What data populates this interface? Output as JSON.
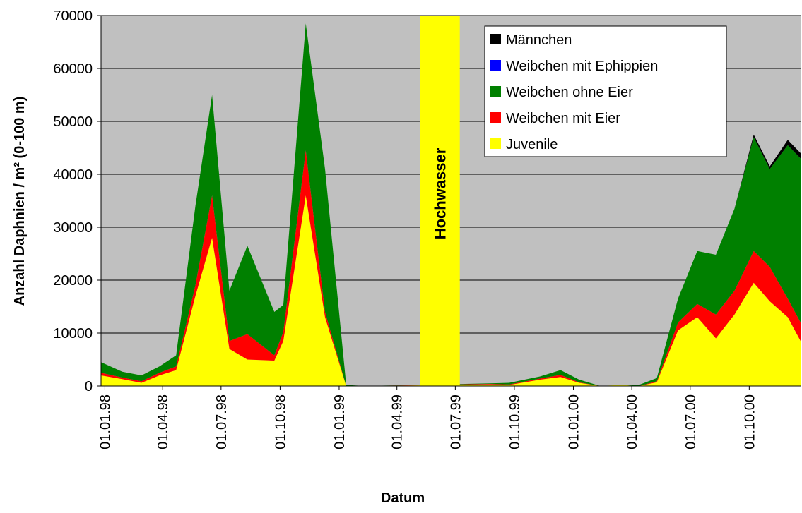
{
  "chart_data": {
    "type": "stacked_area",
    "x_label": "Datum",
    "y_label": "Anzahl Daphnien / m² (0-100 m)",
    "x": [
      "1997-12-26",
      "1998-01-28",
      "1998-02-27",
      "1998-03-27",
      "1998-04-22",
      "1998-05-22",
      "1998-06-17",
      "1998-07-14",
      "1998-08-11",
      "1998-09-22",
      "1998-10-06",
      "1998-11-10",
      "1998-12-10",
      "1999-01-12",
      "1999-02-10",
      "1999-08-24",
      "1999-09-23",
      "1999-11-10",
      "1999-12-12",
      "2000-01-10",
      "2000-02-12",
      "2000-03-15",
      "2000-04-12",
      "2000-05-10",
      "2000-06-12",
      "2000-07-12",
      "2000-08-10",
      "2000-09-08",
      "2000-10-08",
      "2000-11-02",
      "2000-11-30",
      "2000-12-20"
    ],
    "series": [
      {
        "name": "Juvenile",
        "color": "#ffff00",
        "values": [
          2000,
          1300,
          600,
          2000,
          3000,
          17000,
          28000,
          7000,
          5000,
          4800,
          8500,
          36000,
          13000,
          0,
          0,
          300,
          200,
          1200,
          1700,
          600,
          0,
          200,
          0,
          700,
          10500,
          13000,
          9000,
          13500,
          19500,
          16000,
          13000,
          8500
        ]
      },
      {
        "name": "Weibchen mit Eier",
        "color": "#ff0000",
        "values": [
          500,
          300,
          300,
          500,
          700,
          2000,
          8000,
          1500,
          4800,
          1000,
          1700,
          8500,
          1000,
          0,
          0,
          100,
          100,
          200,
          400,
          100,
          0,
          0,
          0,
          200,
          1500,
          2500,
          4500,
          4500,
          6000,
          6500,
          3500,
          3500
        ]
      },
      {
        "name": "Weibchen ohne Eier",
        "color": "#008000",
        "values": [
          2000,
          1100,
          1100,
          1200,
          2100,
          15000,
          19000,
          9500,
          16700,
          8200,
          5100,
          24000,
          27000,
          200,
          0,
          100,
          300,
          400,
          900,
          500,
          0,
          0,
          200,
          600,
          4500,
          10000,
          11300,
          15500,
          21500,
          18500,
          29000,
          31000
        ]
      },
      {
        "name": "Weibchen mit Ephippien",
        "color": "#0000ff",
        "values": [
          0,
          0,
          0,
          0,
          0,
          0,
          0,
          0,
          0,
          0,
          0,
          0,
          0,
          0,
          0,
          0,
          0,
          0,
          0,
          0,
          0,
          0,
          0,
          0,
          0,
          0,
          0,
          0,
          0,
          0,
          0,
          0
        ]
      },
      {
        "name": "Männchen",
        "color": "#000000",
        "values": [
          0,
          0,
          0,
          0,
          0,
          0,
          0,
          0,
          0,
          0,
          0,
          0,
          0,
          0,
          0,
          0,
          0,
          0,
          0,
          0,
          0,
          0,
          0,
          0,
          0,
          0,
          0,
          0,
          500,
          500,
          1000,
          1000
        ]
      }
    ],
    "xlim": [
      "1997-12-26",
      "2000-12-20"
    ],
    "xticks": [
      {
        "value": "1998-01-01",
        "label": "01.01.98"
      },
      {
        "value": "1998-04-01",
        "label": "01.04.98"
      },
      {
        "value": "1998-07-01",
        "label": "01.07.98"
      },
      {
        "value": "1998-10-01",
        "label": "01.10.98"
      },
      {
        "value": "1999-01-01",
        "label": "01.01.99"
      },
      {
        "value": "1999-04-01",
        "label": "01.04.99"
      },
      {
        "value": "1999-07-01",
        "label": "01.07.99"
      },
      {
        "value": "1999-10-01",
        "label": "01.10.99"
      },
      {
        "value": "2000-01-01",
        "label": "01.01.00"
      },
      {
        "value": "2000-04-01",
        "label": "01.04.00"
      },
      {
        "value": "2000-07-01",
        "label": "01.07.00"
      },
      {
        "value": "2000-10-01",
        "label": "01.10.00"
      }
    ],
    "ylim": [
      0,
      70000
    ],
    "yticks": [
      0,
      10000,
      20000,
      30000,
      40000,
      50000,
      60000,
      70000
    ],
    "grid": true,
    "plot_background": "#c0c0c0",
    "legend": "top-right",
    "annotations": [
      {
        "text": "Hochwasser",
        "x0": "1999-05-07",
        "x1": "1999-07-08",
        "color": "#ffff00"
      }
    ]
  }
}
